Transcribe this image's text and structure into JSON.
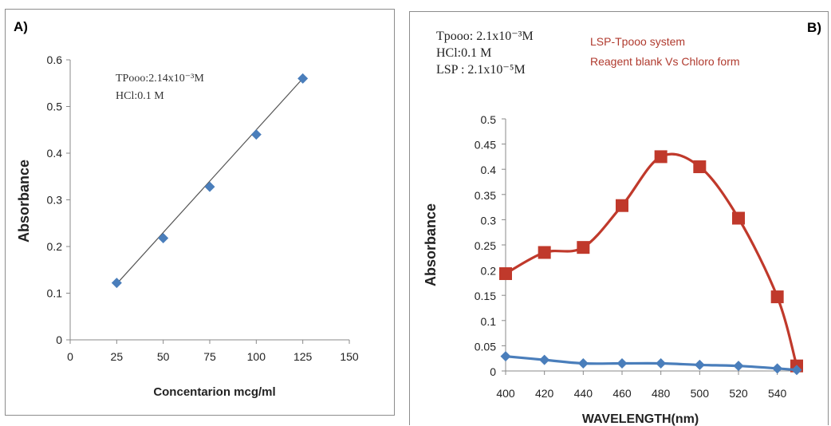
{
  "chart_data": [
    {
      "panel": "A)",
      "type": "scatter",
      "xlabel": "Concentarion mcg/ml",
      "ylabel": "Absorbance",
      "xlim": [
        0,
        150
      ],
      "ylim": [
        0,
        0.6
      ],
      "x_ticks": [
        "0",
        "25",
        "50",
        "75",
        "100",
        "125",
        "150"
      ],
      "y_ticks": [
        "0",
        "0.1",
        "0.2",
        "0.3",
        "0.4",
        "0.5",
        "0.6"
      ],
      "annotations": [
        "TPooo:2.14x10⁻³M",
        "HCl:0.1 M"
      ],
      "series": [
        {
          "x": [
            25,
            50,
            75,
            100,
            125
          ],
          "y": [
            0.122,
            0.218,
            0.328,
            0.44,
            0.56
          ],
          "color": "#4a7ebb",
          "marker": "diamond"
        }
      ],
      "trendline": {
        "x": [
          25,
          125
        ],
        "y": [
          0.12,
          0.56
        ],
        "color": "#555555"
      }
    },
    {
      "panel": "B)",
      "type": "line",
      "xlabel": "WAVELENGTH(nm)",
      "ylabel": "Absorbance",
      "xlim": [
        400,
        550
      ],
      "ylim": [
        0,
        0.5
      ],
      "x_ticks": [
        "400",
        "420",
        "440",
        "460",
        "480",
        "500",
        "520",
        "540"
      ],
      "y_ticks": [
        "0",
        "0.05",
        "0.1",
        "0.15",
        "0.2",
        "0.25",
        "0.3",
        "0.35",
        "0.4",
        "0.45",
        "0.5"
      ],
      "annotations": [
        "Tpooo: 2.1x10⁻³M",
        "HCl:0.1 M",
        "LSP : 2.1x10⁻⁵M"
      ],
      "legend_text": [
        "LSP-Tpooo system",
        "Reagent blank Vs Chloro form"
      ],
      "series": [
        {
          "x": [
            400,
            420,
            440,
            460,
            480,
            500,
            520,
            540,
            550
          ],
          "y": [
            0.193,
            0.235,
            0.245,
            0.328,
            0.425,
            0.405,
            0.303,
            0.147,
            0.01
          ],
          "color": "#c0392b",
          "marker": "square"
        },
        {
          "x": [
            400,
            420,
            440,
            460,
            480,
            500,
            520,
            540,
            550
          ],
          "y": [
            0.029,
            0.022,
            0.015,
            0.015,
            0.015,
            0.012,
            0.01,
            0.005,
            0.002
          ],
          "color": "#4a7ebb",
          "marker": "diamond"
        }
      ]
    }
  ]
}
